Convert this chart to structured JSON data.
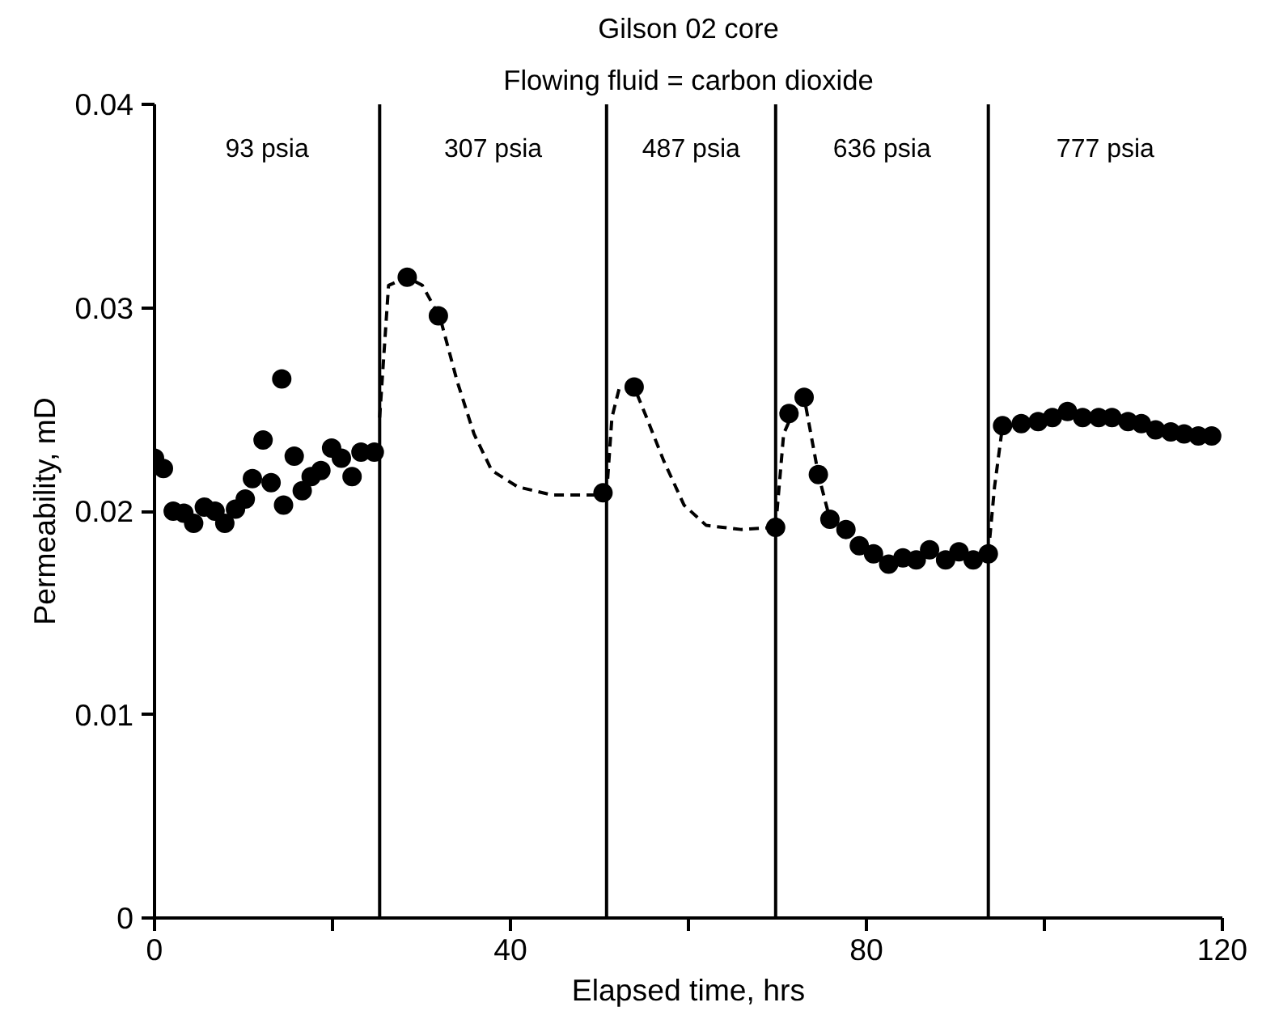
{
  "chart_data": {
    "type": "scatter",
    "title": "Gilson 02 core",
    "subtitle": "Flowing fluid = carbon dioxide",
    "xlabel": "Elapsed time, hrs",
    "ylabel": "Permeability, mD",
    "xlim": [
      0,
      120
    ],
    "ylim": [
      0,
      0.04
    ],
    "xticks": [
      0,
      {
        "value": 20,
        "label": null
      },
      40,
      {
        "value": 60,
        "label": null
      },
      80,
      {
        "value": 100,
        "label": null
      },
      120
    ],
    "yticks": [
      0,
      0.01,
      0.02,
      0.03,
      0.04
    ],
    "grid": false,
    "series": [
      {
        "marker": "circle",
        "color": "#000000",
        "x": [
          0,
          1,
          2.1,
          3.3,
          4.4,
          5.6,
          6.8,
          7.9,
          9.1,
          10.2,
          11,
          12.2,
          13.1,
          14.3,
          14.5,
          15.7,
          16.6,
          17.6,
          18.7,
          19.9,
          21,
          22.2,
          23.2,
          24.7,
          28.4,
          31.9,
          50.4,
          53.9,
          69.8,
          71.3,
          73,
          74.6,
          75.9,
          77.7,
          79.2,
          80.8,
          82.5,
          84.1,
          85.6,
          87.1,
          88.9,
          90.4,
          92,
          93.7,
          95.3,
          97.4,
          99.3,
          100.9,
          102.6,
          104.3,
          106.1,
          107.6,
          109.4,
          110.9,
          112.5,
          114.2,
          115.7,
          117.3,
          118.8
        ],
        "values": [
          0.0226,
          0.0221,
          0.02,
          0.0199,
          0.0194,
          0.0202,
          0.02,
          0.0194,
          0.0201,
          0.0206,
          0.0216,
          0.0235,
          0.0214,
          0.0265,
          0.0203,
          0.0227,
          0.021,
          0.0217,
          0.022,
          0.0231,
          0.0226,
          0.0217,
          0.0229,
          0.0229,
          0.0315,
          0.0296,
          0.0209,
          0.0261,
          0.0192,
          0.0248,
          0.0256,
          0.0218,
          0.0196,
          0.0191,
          0.0183,
          0.0179,
          0.0174,
          0.0177,
          0.0176,
          0.0181,
          0.0176,
          0.018,
          0.0176,
          0.0179,
          0.0242,
          0.0243,
          0.0244,
          0.0246,
          0.0249,
          0.0246,
          0.0246,
          0.0246,
          0.0244,
          0.0243,
          0.024,
          0.0239,
          0.0238,
          0.0237,
          0.0237
        ]
      },
      {
        "type": "line",
        "line_style": "dashed",
        "color": "#000000",
        "x": [
          25.3,
          26.3,
          28.4,
          30.1,
          32.1,
          34,
          35.9,
          37.9,
          40.8,
          44.6,
          50.4
        ],
        "values": [
          0.0246,
          0.0311,
          0.0315,
          0.0311,
          0.0295,
          0.0264,
          0.0238,
          0.022,
          0.0212,
          0.0208,
          0.0208
        ]
      },
      {
        "type": "line",
        "line_style": "dashed",
        "color": "#000000",
        "x": [
          50.8,
          51.4,
          52.2,
          53.9,
          55.3,
          57.2,
          59.5,
          62,
          65.9,
          69.8
        ],
        "values": [
          0.0208,
          0.0246,
          0.026,
          0.0261,
          0.0246,
          0.0225,
          0.0203,
          0.0193,
          0.0191,
          0.0192
        ]
      },
      {
        "type": "line",
        "line_style": "dashed",
        "color": "#000000",
        "x": [
          69.8,
          70.7,
          71.7,
          73,
          74.6,
          75.9
        ],
        "values": [
          0.0192,
          0.0238,
          0.0248,
          0.0256,
          0.0218,
          0.0196
        ]
      },
      {
        "type": "line",
        "line_style": "dashed",
        "color": "#000000",
        "x": [
          93.7,
          94.4,
          95.3
        ],
        "values": [
          0.0179,
          0.0212,
          0.0242
        ]
      }
    ],
    "ref_lines": [
      {
        "axis": "x",
        "value": 25.3,
        "color": "#000000"
      },
      {
        "axis": "x",
        "value": 50.8,
        "color": "#000000"
      },
      {
        "axis": "x",
        "value": 69.8,
        "color": "#000000"
      },
      {
        "axis": "x",
        "value": 93.7,
        "color": "#000000"
      }
    ],
    "annotations": [
      "93 psia",
      "307 psia",
      "487 psia",
      "636 psia",
      "777 psia"
    ]
  }
}
